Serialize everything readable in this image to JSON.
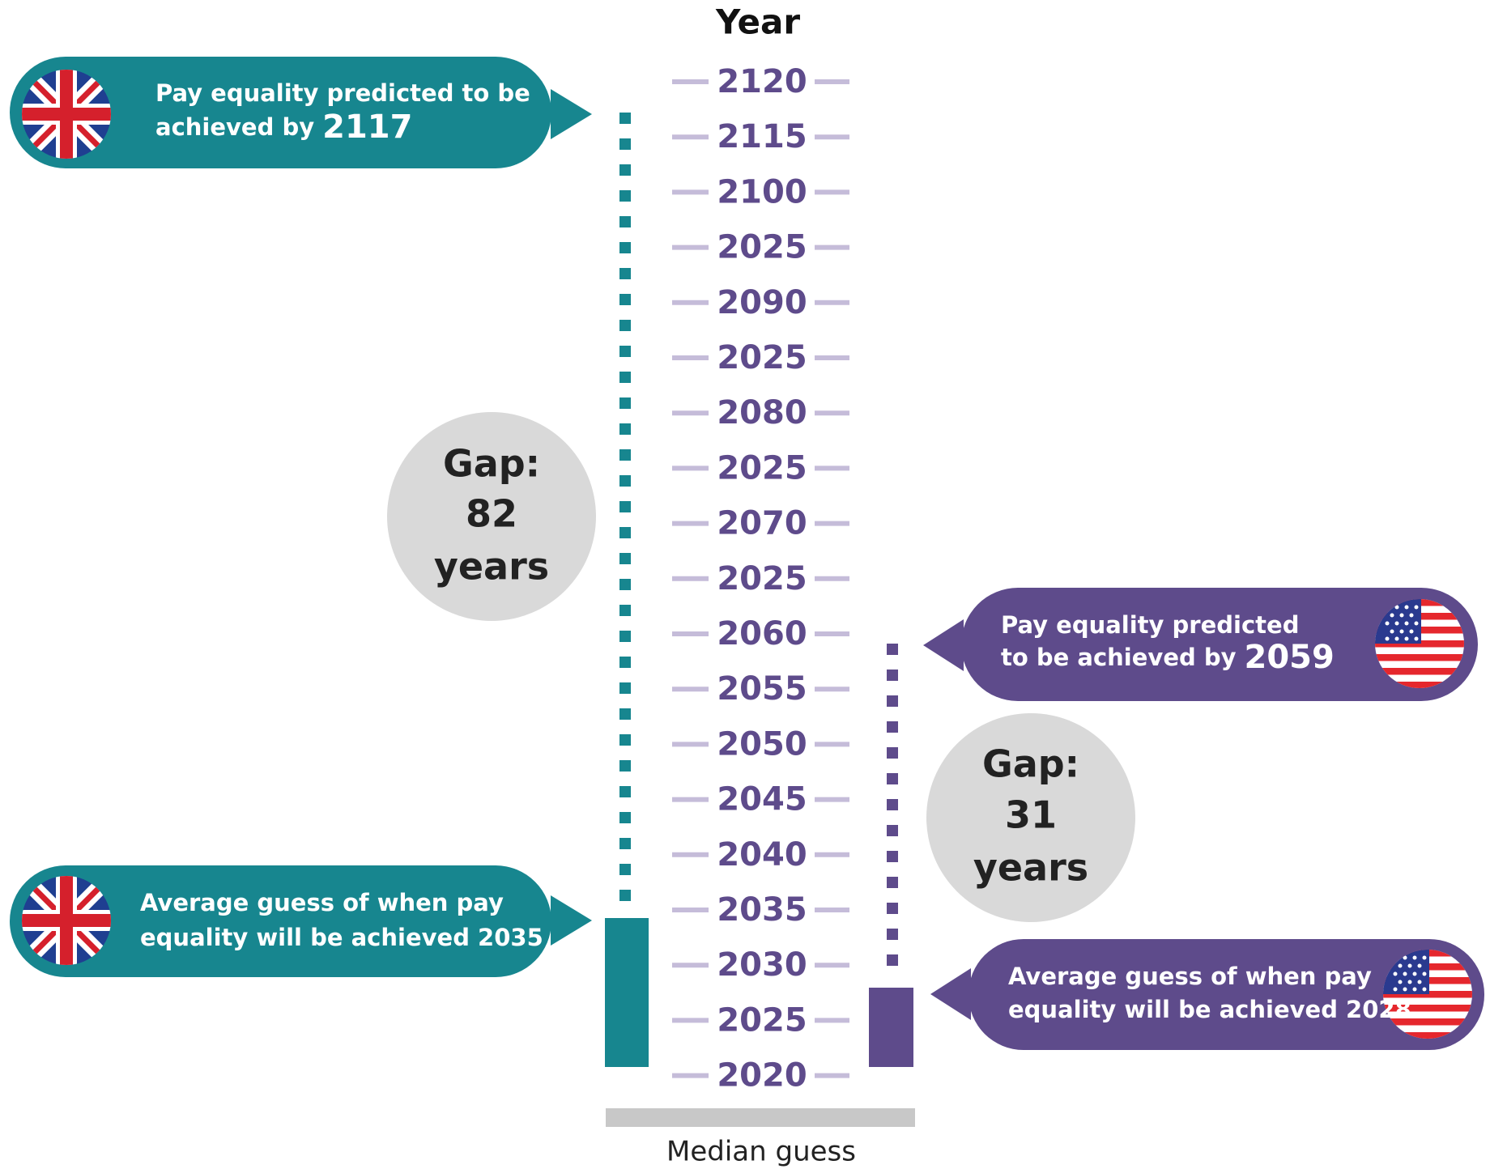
{
  "axis_title": "Year",
  "axis_labels": [
    "2120",
    "2115",
    "2100",
    "2025",
    "2090",
    "2025",
    "2080",
    "2025",
    "2070",
    "2025",
    "2060",
    "2055",
    "2050",
    "2045",
    "2040",
    "2035",
    "2030",
    "2025",
    "2020"
  ],
  "uk_predicted": {
    "lines": [
      "Pay equality predicted to be",
      "achieved by"
    ],
    "year": "2117"
  },
  "uk_guess": {
    "lines": [
      "Average guess of when pay",
      "equality will be achieved 2035"
    ]
  },
  "uk_gap": {
    "label": "Gap:",
    "number": "82",
    "unit": "years"
  },
  "us_predicted": {
    "lines": [
      "Pay equality predicted",
      "to be achieved by"
    ],
    "year": "2059"
  },
  "us_guess": {
    "lines": [
      "Average guess of when pay",
      "equality will be achieved 2028"
    ]
  },
  "us_gap": {
    "label": "Gap:",
    "number": "31",
    "unit": "years"
  },
  "footer": "Median guess"
}
